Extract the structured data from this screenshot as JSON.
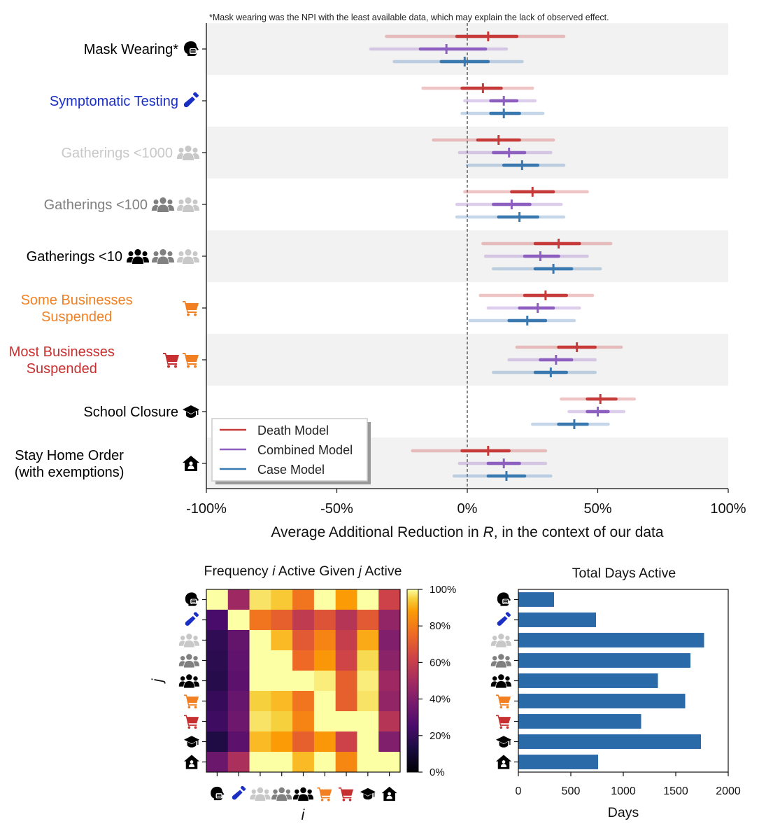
{
  "footnote": "*Mask wearing was the NPI with the least available data, which may explain the lack of observed effect.",
  "colors": {
    "death": "#c73a3a",
    "combined": "#8d5fbf",
    "case": "#3a78b0",
    "band": "#f2f2f2",
    "bar": "#2b6aa9"
  },
  "chart_data": [
    {
      "type": "forest",
      "xlabel_parts": [
        "Average Additional Reduction in ",
        "R",
        ", in the context of our data"
      ],
      "xlim": [
        -100,
        100
      ],
      "xticks": [
        "-100%",
        "-50%",
        "0%",
        "50%",
        "100%"
      ],
      "xtick_values": [
        -100,
        -50,
        0,
        50,
        100
      ],
      "legend": [
        "Death Model",
        "Combined Model",
        "Case Model"
      ],
      "categories": [
        {
          "label": "Mask Wearing*",
          "color": "#000000",
          "icons": [
            "mask"
          ],
          "icon_colors": [
            "#000000"
          ],
          "death": [
            8,
            -4,
            19,
            -31,
            37
          ],
          "combined": [
            -8,
            -18,
            7,
            -37,
            15
          ],
          "case": [
            -1,
            -10,
            8,
            -28,
            21
          ]
        },
        {
          "label": "Symptomatic Testing",
          "color": "#1a2fc4",
          "icons": [
            "test-tube"
          ],
          "icon_colors": [
            "#1a2fc4"
          ],
          "death": [
            6,
            -2,
            13,
            -17,
            25
          ],
          "combined": [
            14,
            9,
            19,
            -1,
            26
          ],
          "case": [
            14,
            9,
            20,
            -2,
            29
          ]
        },
        {
          "label": "Gatherings <1000",
          "color": "#c8c8c8",
          "icons": [
            "group"
          ],
          "icon_colors": [
            "#c8c8c8"
          ],
          "death": [
            12,
            4,
            20,
            -13,
            33
          ],
          "combined": [
            16,
            10,
            22,
            -3,
            32
          ],
          "case": [
            21,
            14,
            27,
            0,
            37
          ]
        },
        {
          "label": "Gatherings <100",
          "color": "#808080",
          "icons": [
            "group",
            "group"
          ],
          "icon_colors": [
            "#808080",
            "#c8c8c8"
          ],
          "death": [
            25,
            17,
            33,
            -1,
            46
          ],
          "combined": [
            17,
            10,
            24,
            -4,
            36
          ],
          "case": [
            20,
            12,
            27,
            -4,
            37
          ]
        },
        {
          "label": "Gatherings <10",
          "color": "#000000",
          "icons": [
            "group",
            "group",
            "group"
          ],
          "icon_colors": [
            "#000000",
            "#808080",
            "#c8c8c8"
          ],
          "death": [
            35,
            26,
            43,
            6,
            55
          ],
          "combined": [
            28,
            22,
            35,
            7,
            46
          ],
          "case": [
            33,
            26,
            40,
            10,
            51
          ]
        },
        {
          "label": "Some Businesses\nSuspended",
          "color": "#f28022",
          "icons": [
            "cart"
          ],
          "icon_colors": [
            "#f28022"
          ],
          "death": [
            30,
            22,
            38,
            5,
            48
          ],
          "combined": [
            27,
            20,
            33,
            8,
            43
          ],
          "case": [
            23,
            16,
            30,
            1,
            41
          ]
        },
        {
          "label": "Most Businesses\nSuspended",
          "color": "#c73030",
          "icons": [
            "cart",
            "cart"
          ],
          "icon_colors": [
            "#c73030",
            "#f28022"
          ],
          "death": [
            42,
            35,
            49,
            19,
            59
          ],
          "combined": [
            34,
            28,
            40,
            16,
            49
          ],
          "case": [
            32,
            26,
            38,
            10,
            49
          ]
        },
        {
          "label": "School Closure",
          "color": "#000000",
          "icons": [
            "cap"
          ],
          "icon_colors": [
            "#000000"
          ],
          "death": [
            51,
            46,
            57,
            36,
            64
          ],
          "combined": [
            50,
            46,
            54,
            39,
            60
          ],
          "case": [
            41,
            35,
            46,
            25,
            54
          ]
        },
        {
          "label": "Stay Home Order\n(with exemptions)",
          "color": "#000000",
          "icons": [
            "house"
          ],
          "icon_colors": [
            "#000000"
          ],
          "death": [
            8,
            -2,
            16,
            -21,
            30
          ],
          "combined": [
            14,
            8,
            20,
            -3,
            30
          ],
          "case": [
            15,
            8,
            22,
            -5,
            32
          ]
        }
      ]
    },
    {
      "type": "heatmap",
      "title_parts": [
        "Frequency ",
        "i",
        " Active Given ",
        "j",
        " Active"
      ],
      "xlabel": "i",
      "ylabel": "j",
      "icons": [
        "mask",
        "test-tube",
        "group",
        "group",
        "group",
        "cart",
        "cart",
        "cap",
        "house"
      ],
      "icon_colors": [
        "#000000",
        "#1a2fc4",
        "#c8c8c8",
        "#808080",
        "#000000",
        "#f28022",
        "#c73030",
        "#000000",
        "#000000"
      ],
      "colorbar_ticks": [
        "0%",
        "20%",
        "40%",
        "60%",
        "80%",
        "100%"
      ],
      "colorbar_values": [
        0,
        20,
        40,
        60,
        80,
        100
      ],
      "matrix": [
        [
          100,
          48,
          97,
          94,
          78,
          100,
          88,
          100,
          62
        ],
        [
          25,
          100,
          78,
          72,
          58,
          68,
          55,
          70,
          45
        ],
        [
          18,
          32,
          100,
          92,
          70,
          82,
          60,
          90,
          40
        ],
        [
          17,
          31,
          100,
          100,
          75,
          87,
          63,
          96,
          43
        ],
        [
          16,
          30,
          100,
          100,
          100,
          98,
          72,
          98,
          48
        ],
        [
          20,
          33,
          95,
          92,
          78,
          100,
          72,
          97,
          45
        ],
        [
          22,
          35,
          97,
          95,
          82,
          100,
          100,
          100,
          55
        ],
        [
          14,
          30,
          92,
          88,
          72,
          87,
          62,
          100,
          40
        ],
        [
          34,
          52,
          100,
          100,
          92,
          100,
          83,
          100,
          100
        ]
      ]
    },
    {
      "type": "bar",
      "orientation": "horizontal",
      "title": "Total Days Active",
      "xlabel": "Days",
      "xlim": [
        0,
        2000
      ],
      "xticks": [
        "0",
        "500",
        "1000",
        "1500",
        "2000"
      ],
      "xtick_values": [
        0,
        500,
        1000,
        1500,
        2000
      ],
      "icons": [
        "mask",
        "test-tube",
        "group",
        "group",
        "group",
        "cart",
        "cart",
        "cap",
        "house"
      ],
      "icon_colors": [
        "#000000",
        "#1a2fc4",
        "#c8c8c8",
        "#808080",
        "#000000",
        "#f28022",
        "#c73030",
        "#000000",
        "#000000"
      ],
      "values": [
        340,
        740,
        1770,
        1640,
        1330,
        1590,
        1170,
        1740,
        760
      ]
    }
  ]
}
